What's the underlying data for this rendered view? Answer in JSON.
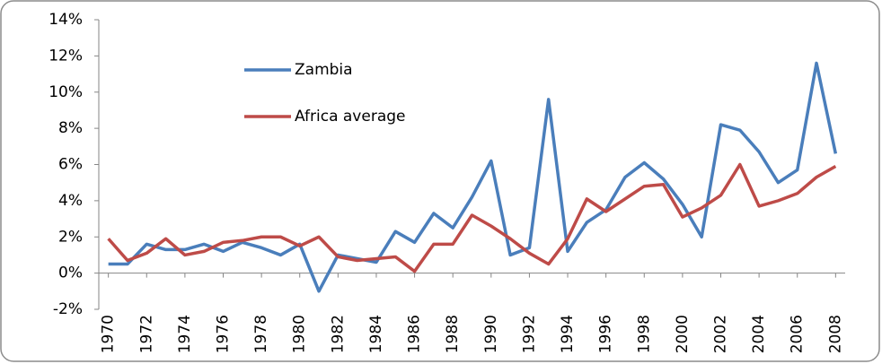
{
  "chart_data": {
    "type": "line",
    "x": [
      1970,
      1971,
      1972,
      1973,
      1974,
      1975,
      1976,
      1977,
      1978,
      1979,
      1980,
      1981,
      1982,
      1983,
      1984,
      1985,
      1986,
      1987,
      1988,
      1989,
      1990,
      1991,
      1992,
      1993,
      1994,
      1995,
      1996,
      1997,
      1998,
      1999,
      2000,
      2001,
      2002,
      2003,
      2004,
      2005,
      2006,
      2007,
      2008
    ],
    "xlim": [
      1969.5,
      2008.5
    ],
    "xticks": [
      1970,
      1972,
      1974,
      1976,
      1978,
      1980,
      1982,
      1984,
      1986,
      1988,
      1990,
      1992,
      1994,
      1996,
      1998,
      2000,
      2002,
      2004,
      2006,
      2008
    ],
    "ylim": [
      -2,
      14
    ],
    "yticks": [
      {
        "value": -2,
        "label": "-2%"
      },
      {
        "value": 0,
        "label": "0%"
      },
      {
        "value": 2,
        "label": "2%"
      },
      {
        "value": 4,
        "label": "4%"
      },
      {
        "value": 6,
        "label": "6%"
      },
      {
        "value": 8,
        "label": "8%"
      },
      {
        "value": 10,
        "label": "10%"
      },
      {
        "value": 12,
        "label": "12%"
      },
      {
        "value": 14,
        "label": "14%"
      }
    ],
    "grid": false,
    "legend": "top-left",
    "series": [
      {
        "name": "Zambia",
        "color": "#4a7ebb",
        "values": [
          0.5,
          0.5,
          1.6,
          1.3,
          1.3,
          1.6,
          1.2,
          1.7,
          1.4,
          1.0,
          1.6,
          -1.0,
          1.0,
          0.8,
          0.6,
          2.3,
          1.7,
          3.3,
          2.5,
          4.2,
          6.2,
          1.0,
          1.4,
          9.6,
          1.2,
          2.8,
          3.5,
          5.3,
          6.1,
          5.2,
          3.8,
          2.0,
          8.2,
          7.9,
          6.7,
          5.0,
          5.7,
          11.6,
          6.6
        ]
      },
      {
        "name": "Africa average",
        "color": "#be4b48",
        "values": [
          1.9,
          0.7,
          1.1,
          1.9,
          1.0,
          1.2,
          1.7,
          1.8,
          2.0,
          2.0,
          1.5,
          2.0,
          0.9,
          0.7,
          0.8,
          0.9,
          0.1,
          1.6,
          1.6,
          3.2,
          2.6,
          1.9,
          1.1,
          0.5,
          1.9,
          4.1,
          3.4,
          4.1,
          4.8,
          4.9,
          3.1,
          3.6,
          4.3,
          6.0,
          3.7,
          4.0,
          4.4,
          5.3,
          5.9
        ]
      }
    ]
  }
}
